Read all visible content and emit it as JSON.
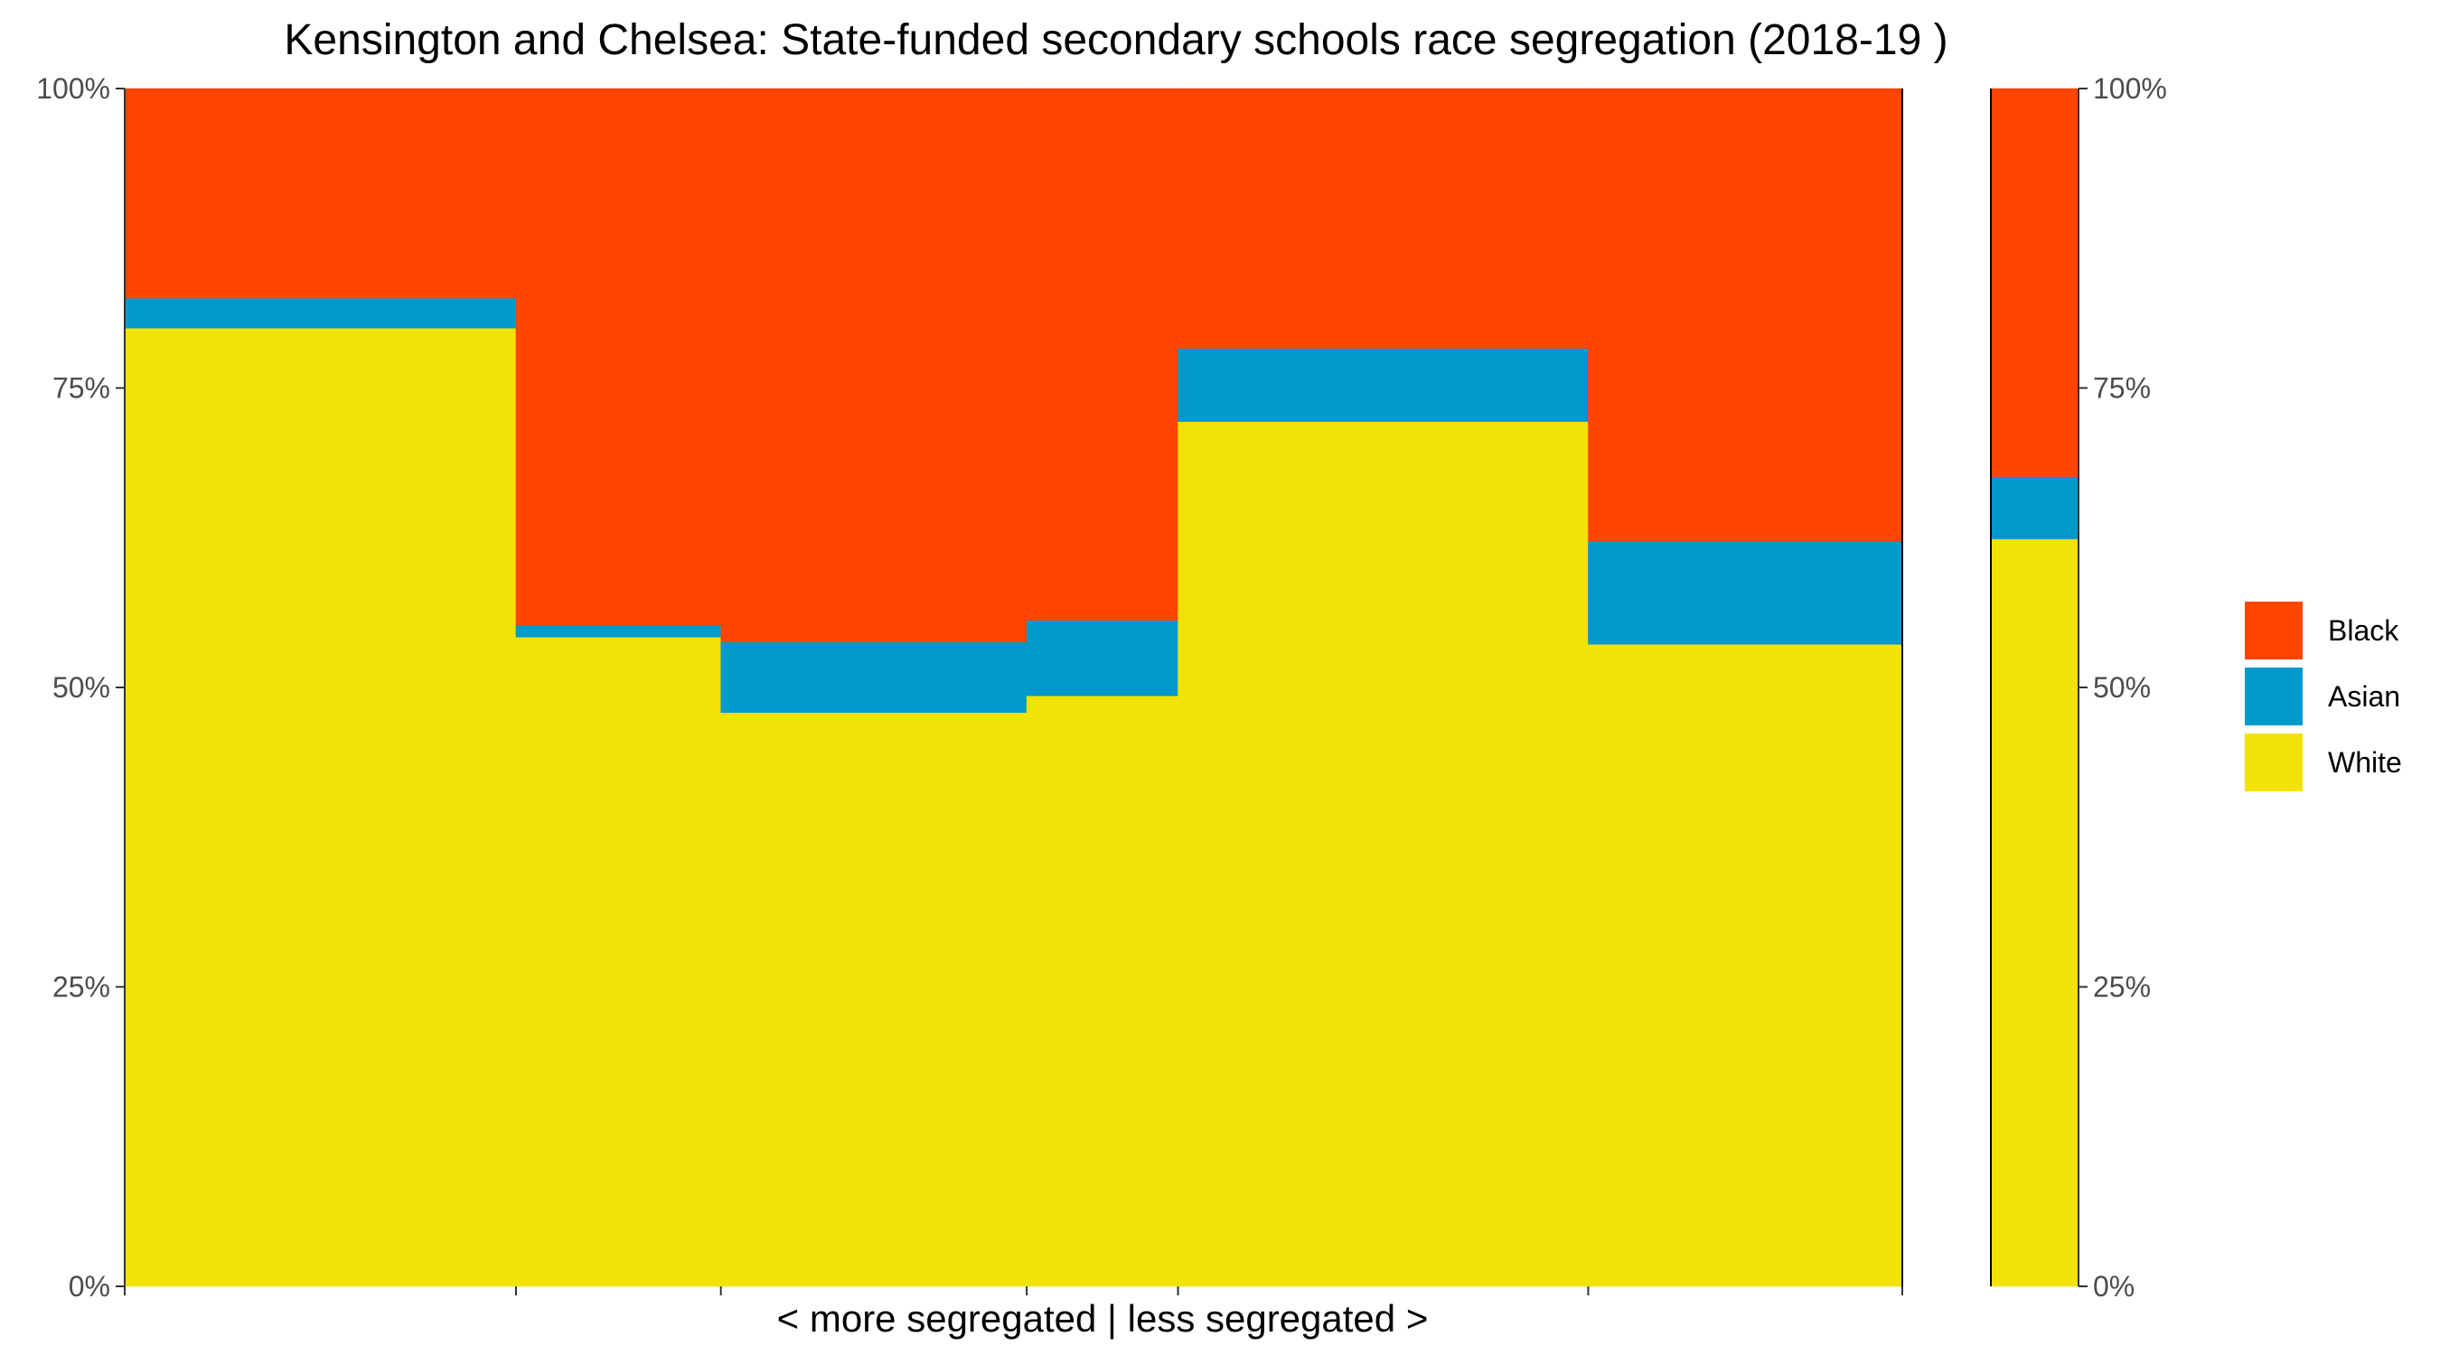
{
  "chart_data": {
    "type": "bar",
    "title": "Kensington and Chelsea: State-funded secondary schools race segregation (2018-19 )",
    "xlabel": "< more segregated | less segregated >",
    "ylabel": "",
    "ylim": [
      0,
      1
    ],
    "y_ticks": [
      "0%",
      "25%",
      "50%",
      "75%",
      "100%"
    ],
    "y_tick_values": [
      0,
      0.25,
      0.5,
      0.75,
      1
    ],
    "grid": false,
    "legend_position": "right",
    "variable_width": true,
    "series": [
      {
        "name": "White",
        "color": "#F2E205"
      },
      {
        "name": "Asian",
        "color": "#0099CC"
      },
      {
        "name": "Black",
        "color": "#FF4500"
      }
    ],
    "legend_order": [
      "Black",
      "Asian",
      "White"
    ],
    "bars": [
      {
        "width": 0.2043,
        "values": {
          "White": 0.8,
          "Asian": 0.025,
          "Black": 0.175
        }
      },
      {
        "width": 0.107,
        "values": {
          "White": 0.542,
          "Asian": 0.01,
          "Black": 0.448
        }
      },
      {
        "width": 0.1597,
        "values": {
          "White": 0.479,
          "Asian": 0.059,
          "Black": 0.462
        }
      },
      {
        "width": 0.079,
        "values": {
          "White": 0.493,
          "Asian": 0.063,
          "Black": 0.444
        }
      },
      {
        "width": 0.2142,
        "values": {
          "White": 0.722,
          "Asian": 0.061,
          "Black": 0.217
        }
      },
      {
        "width": 0.164,
        "values": {
          "White": 0.536,
          "Asian": 0.086,
          "Black": 0.378
        }
      }
    ],
    "total_bar": {
      "values": {
        "White": 0.624,
        "Asian": 0.052,
        "Black": 0.324
      }
    }
  }
}
